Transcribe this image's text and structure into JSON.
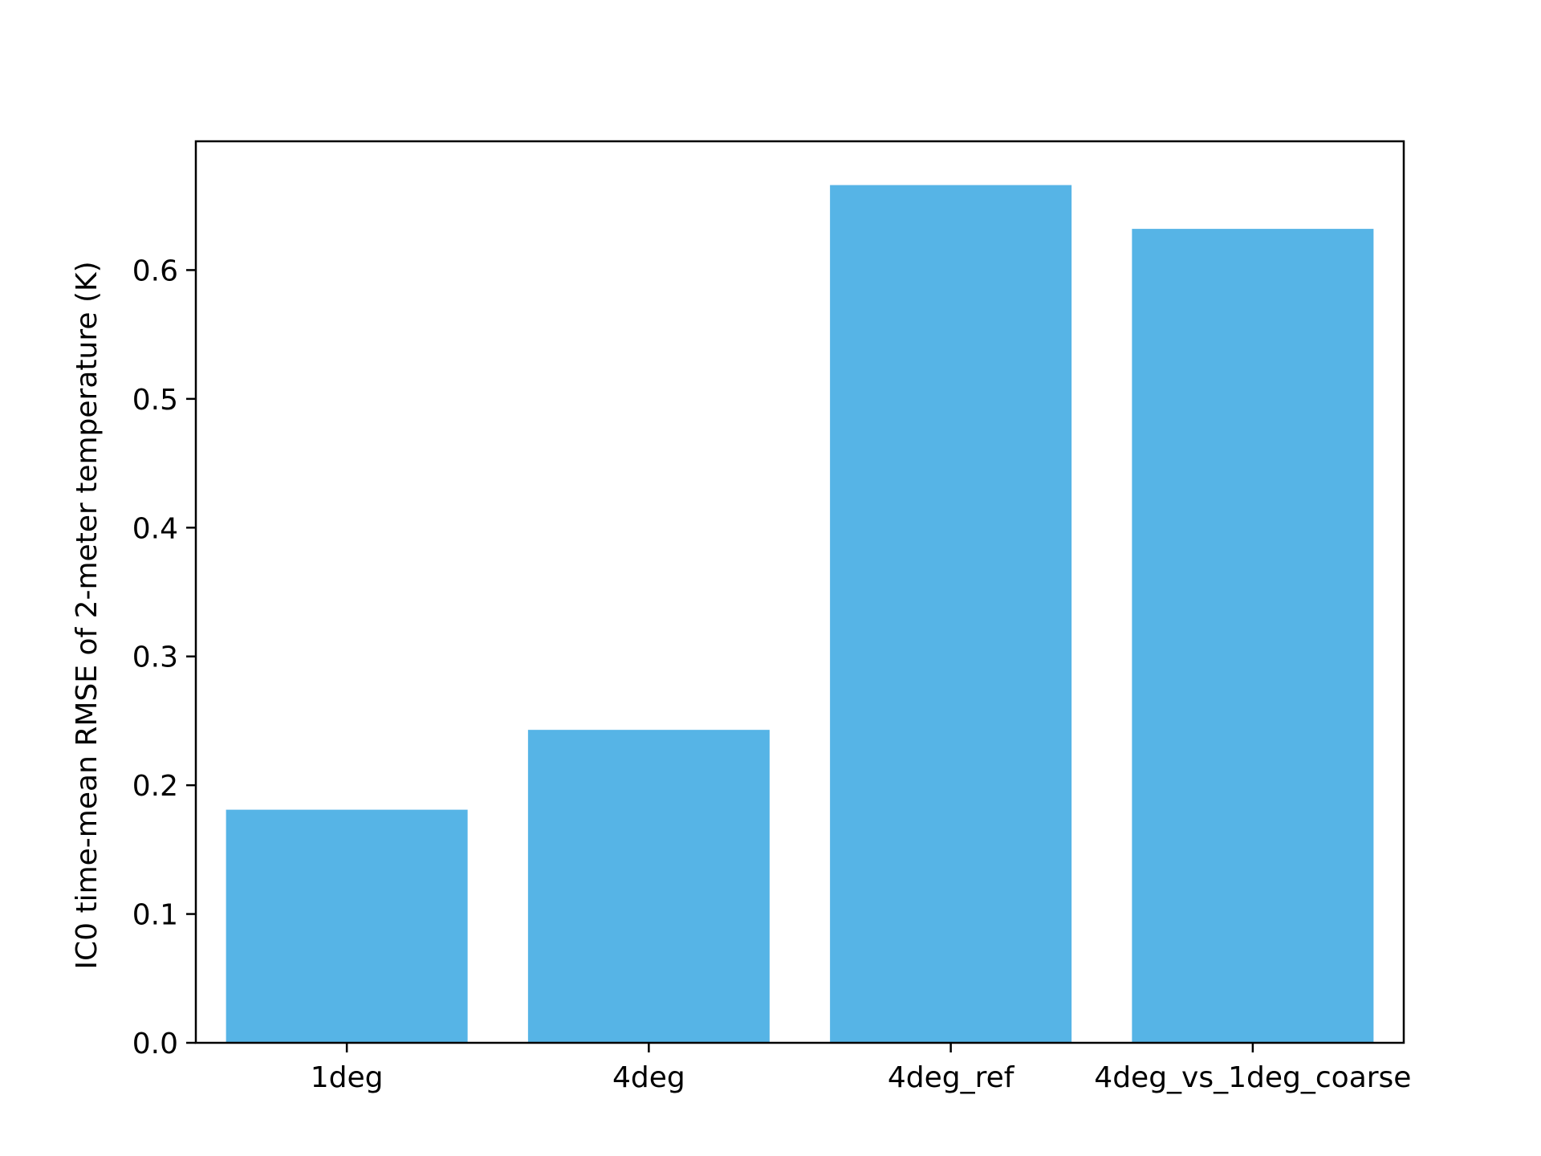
{
  "chart_data": {
    "type": "bar",
    "title": "",
    "xlabel": "",
    "ylabel": "IC0 time-mean RMSE of 2-meter temperature (K)",
    "categories": [
      "1deg",
      "4deg",
      "4deg_ref",
      "4deg_vs_1deg_coarse"
    ],
    "values": [
      0.181,
      0.243,
      0.666,
      0.632
    ],
    "ylim": [
      0,
      0.7
    ],
    "yticks": [
      0.0,
      0.1,
      0.2,
      0.3,
      0.4,
      0.5,
      0.6
    ],
    "ytick_labels": [
      "0.0",
      "0.1",
      "0.2",
      "0.3",
      "0.4",
      "0.5",
      "0.6"
    ],
    "grid": false,
    "bar_color": "#56B4E6",
    "axis_color": "#000000"
  }
}
